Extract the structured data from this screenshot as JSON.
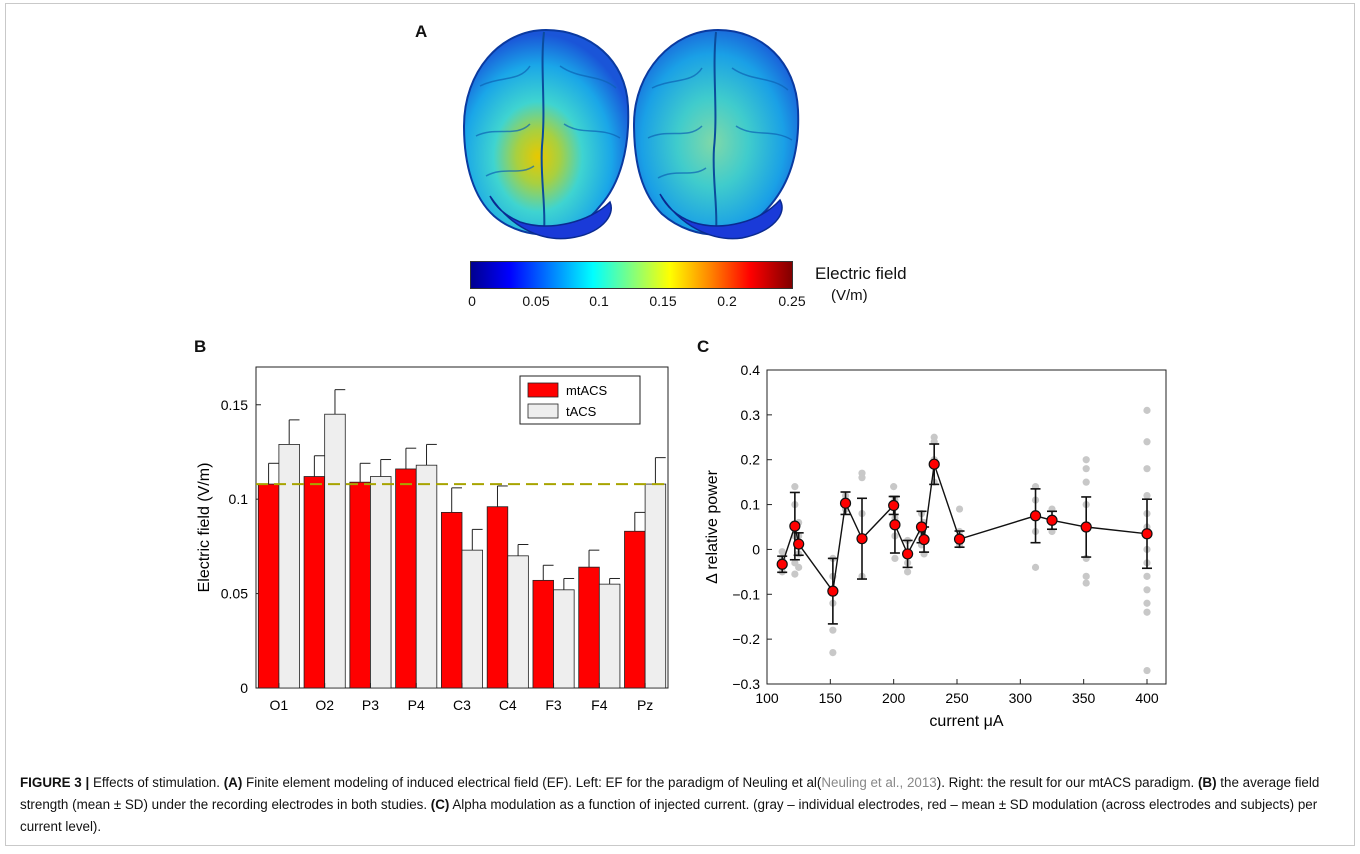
{
  "panel_a": {
    "letter": "A",
    "colorbar": {
      "label": "Electric field",
      "unit": "(V/m)",
      "ticks": [
        "0",
        "0.05",
        "0.1",
        "0.15",
        "0.2",
        "0.25"
      ],
      "colors": [
        "#00008f",
        "#0000ff",
        "#0080ff",
        "#00ffff",
        "#80ff80",
        "#ffff00",
        "#ff8000",
        "#ff0000",
        "#800000"
      ]
    }
  },
  "panel_b": {
    "letter": "B"
  },
  "panel_c": {
    "letter": "C"
  },
  "caption": {
    "figure": "FIGURE 3 |",
    "text1": " Effects of stimulation. ",
    "label_a": "(A)",
    "text2": " Finite element modeling of induced electrical field (EF). Left: EF for the paradigm of Neuling et al(",
    "citation": "Neuling et al., 2013",
    "text3": "). Right: the result for our mtACS paradigm. ",
    "label_b": "(B)",
    "text4": " the average field strength (mean ± SD) under the recording electrodes in both studies. ",
    "label_c": "(C)",
    "text5": " Alpha modulation as a function of injected current. (gray – individual electrodes, red – mean ± SD modulation (across electrodes and subjects) per current level)."
  },
  "chart_data": [
    {
      "type": "bar",
      "ylabel": "Electric field (V/m)",
      "ylim": [
        0,
        0.17
      ],
      "yticks": [
        "0",
        "0.05",
        "0.1",
        "0.15"
      ],
      "categories": [
        "O1",
        "O2",
        "P3",
        "P4",
        "C3",
        "C4",
        "F3",
        "F4",
        "Pz"
      ],
      "series": [
        {
          "name": "mtACS",
          "color": "#ff0000",
          "values": [
            0.108,
            0.112,
            0.109,
            0.116,
            0.093,
            0.096,
            0.057,
            0.064,
            0.083
          ],
          "sd": [
            0.011,
            0.011,
            0.01,
            0.011,
            0.013,
            0.011,
            0.008,
            0.009,
            0.01
          ]
        },
        {
          "name": "tACS",
          "color": "#eeeeee",
          "values": [
            0.129,
            0.145,
            0.112,
            0.118,
            0.073,
            0.07,
            0.052,
            0.055,
            0.108
          ],
          "sd": [
            0.013,
            0.013,
            0.009,
            0.011,
            0.011,
            0.006,
            0.006,
            0.003,
            0.014
          ]
        }
      ],
      "reference_line": {
        "value": 0.108,
        "color": "#a8a400",
        "style": "dashed"
      },
      "legend_position": "top-right",
      "grid": false
    },
    {
      "type": "scatter",
      "xlabel": "current μA",
      "ylabel": "Δ relative power",
      "xlim": [
        100,
        415
      ],
      "ylim": [
        -0.3,
        0.4
      ],
      "xticks": [
        "100",
        "150",
        "200",
        "250",
        "300",
        "350",
        "400"
      ],
      "yticks": [
        "−0.3",
        "−0.2",
        "−0.1",
        "0",
        "0.1",
        "0.2",
        "0.3",
        "0.4"
      ],
      "grid": false,
      "mean_series": {
        "color": "#ff0000",
        "x": [
          112,
          122,
          125,
          152,
          162,
          175,
          200,
          201,
          211,
          222,
          224,
          232,
          252,
          312,
          325,
          352,
          400
        ],
        "y": [
          -0.033,
          0.052,
          0.012,
          -0.093,
          0.103,
          0.024,
          0.098,
          0.055,
          -0.01,
          0.05,
          0.022,
          0.19,
          0.023,
          0.075,
          0.065,
          0.05,
          0.035
        ],
        "sd": [
          0.018,
          0.075,
          0.025,
          0.073,
          0.025,
          0.09,
          0.02,
          0.063,
          0.03,
          0.035,
          0.028,
          0.045,
          0.018,
          0.06,
          0.02,
          0.067,
          0.077
        ]
      },
      "individual_points": {
        "color": "#c8c8c8",
        "x": [
          112,
          112,
          112,
          112,
          122,
          122,
          122,
          122,
          122,
          125,
          125,
          125,
          125,
          152,
          152,
          152,
          152,
          152,
          162,
          162,
          162,
          175,
          175,
          175,
          175,
          200,
          200,
          201,
          201,
          201,
          201,
          211,
          211,
          211,
          222,
          222,
          222,
          224,
          224,
          232,
          232,
          232,
          232,
          252,
          252,
          252,
          312,
          312,
          312,
          312,
          325,
          325,
          325,
          352,
          352,
          352,
          352,
          352,
          352,
          352,
          352,
          400,
          400,
          400,
          400,
          400,
          400,
          400,
          400,
          400,
          400,
          400,
          400,
          400,
          400
        ],
        "y": [
          -0.05,
          -0.04,
          -0.02,
          -0.005,
          0.14,
          0.1,
          0.03,
          -0.03,
          -0.055,
          0.06,
          0.03,
          -0.01,
          -0.04,
          -0.23,
          -0.18,
          -0.12,
          -0.06,
          -0.02,
          0.12,
          0.09,
          0.11,
          0.17,
          0.16,
          0.08,
          -0.06,
          0.14,
          0.1,
          0.11,
          0.07,
          0.03,
          -0.02,
          0.02,
          -0.03,
          -0.05,
          0.08,
          0.04,
          0.01,
          0.06,
          -0.01,
          0.25,
          0.24,
          0.2,
          0.15,
          0.09,
          0.04,
          0.01,
          0.14,
          0.11,
          0.04,
          -0.04,
          0.09,
          0.07,
          0.04,
          0.2,
          0.18,
          0.15,
          0.1,
          0.05,
          -0.02,
          -0.06,
          -0.075,
          0.31,
          0.24,
          0.18,
          0.12,
          0.08,
          0.05,
          0.03,
          0.0,
          -0.03,
          -0.06,
          -0.09,
          -0.12,
          -0.14,
          -0.27
        ]
      }
    }
  ]
}
